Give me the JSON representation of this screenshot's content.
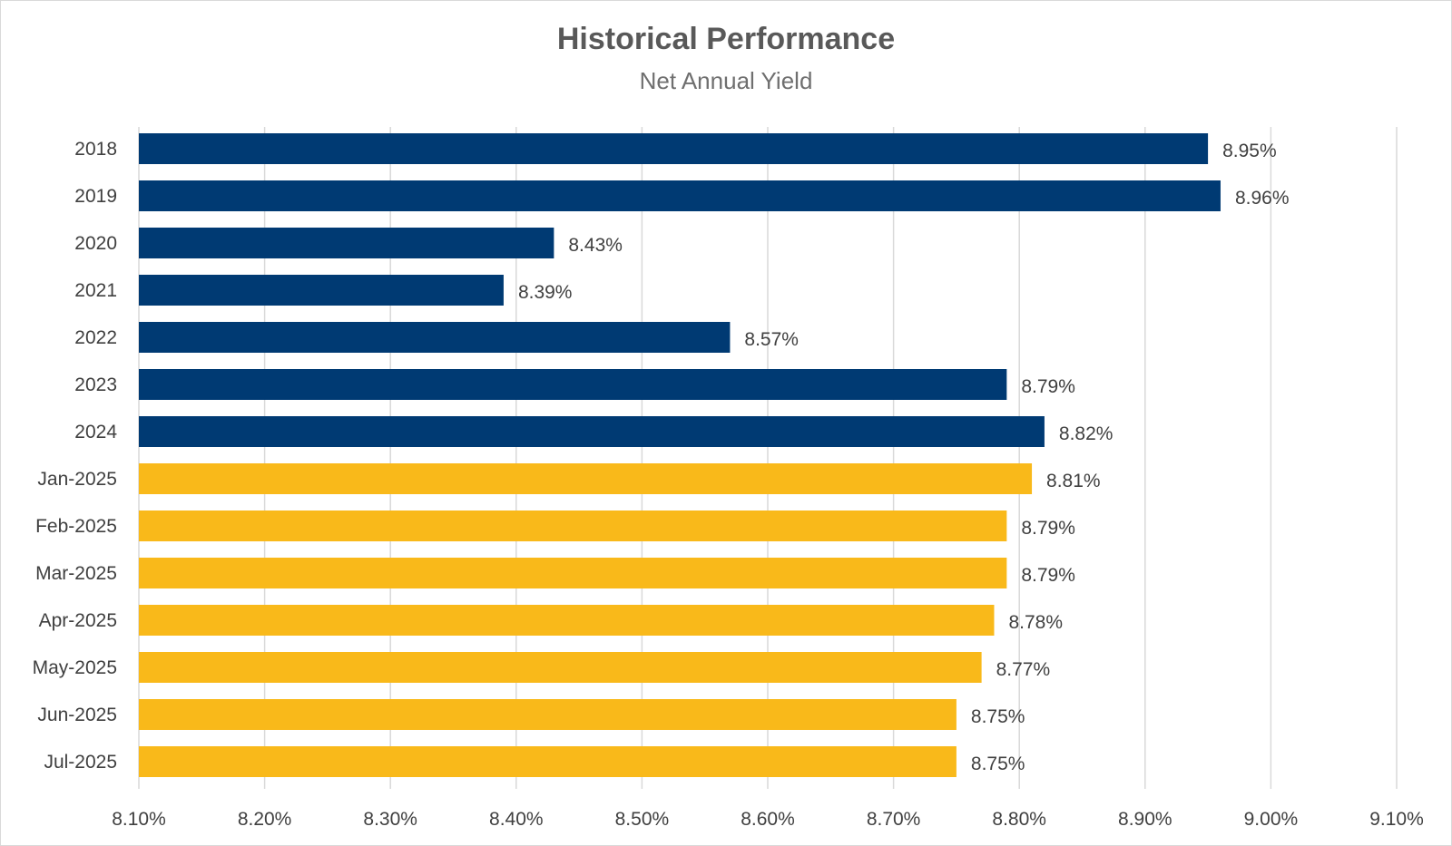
{
  "chart_data": {
    "type": "bar",
    "orientation": "horizontal",
    "title": "Historical Performance",
    "subtitle": "Net Annual Yield",
    "xlabel": "",
    "ylabel": "",
    "xlim": [
      8.1,
      9.1
    ],
    "x_ticks": [
      8.1,
      8.2,
      8.3,
      8.4,
      8.5,
      8.6,
      8.7,
      8.8,
      8.9,
      9.0,
      9.1
    ],
    "x_tick_labels": [
      "8.10%",
      "8.20%",
      "8.30%",
      "8.40%",
      "8.50%",
      "8.60%",
      "8.70%",
      "8.80%",
      "8.90%",
      "9.00%",
      "9.10%"
    ],
    "grid": true,
    "legend": "none",
    "categories": [
      "2018",
      "2019",
      "2020",
      "2021",
      "2022",
      "2023",
      "2024",
      "Jan-2025",
      "Feb-2025",
      "Mar-2025",
      "Apr-2025",
      "May-2025",
      "Jun-2025",
      "Jul-2025"
    ],
    "values": [
      8.95,
      8.96,
      8.43,
      8.39,
      8.57,
      8.79,
      8.82,
      8.81,
      8.79,
      8.79,
      8.78,
      8.77,
      8.75,
      8.75
    ],
    "data_labels": [
      "8.95%",
      "8.96%",
      "8.43%",
      "8.39%",
      "8.57%",
      "8.79%",
      "8.82%",
      "8.81%",
      "8.79%",
      "8.79%",
      "8.78%",
      "8.77%",
      "8.75%",
      "8.75%"
    ],
    "bar_colors": [
      "#003a73",
      "#003a73",
      "#003a73",
      "#003a73",
      "#003a73",
      "#003a73",
      "#003a73",
      "#f9b91a",
      "#f9b91a",
      "#f9b91a",
      "#f9b91a",
      "#f9b91a",
      "#f9b91a",
      "#f9b91a"
    ],
    "colors": {
      "annual": "#003a73",
      "monthly": "#f9b91a",
      "grid": "#d9d9d9",
      "text": "#404040"
    }
  }
}
